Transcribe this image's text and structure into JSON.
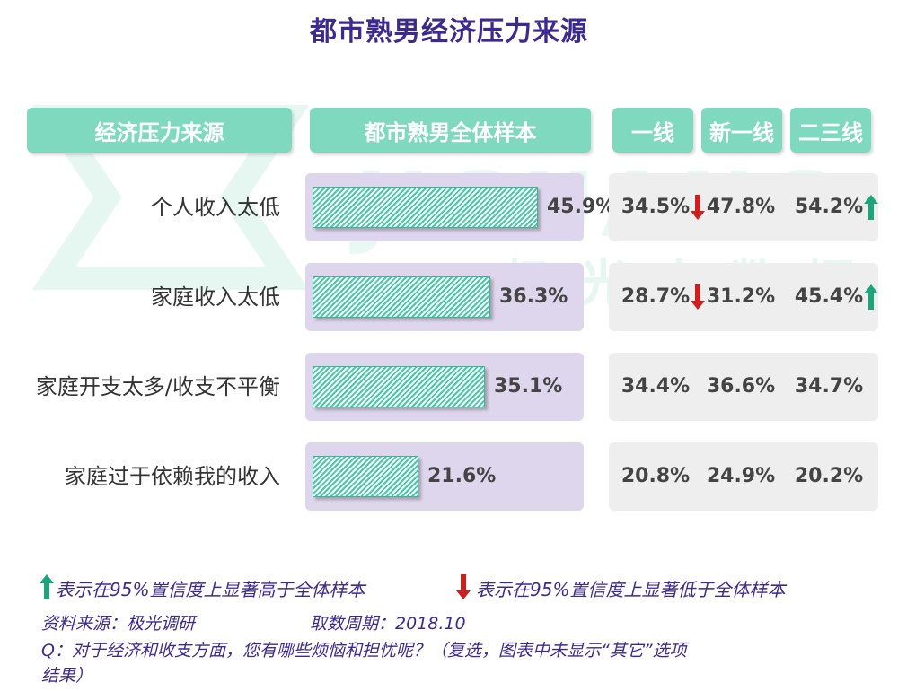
{
  "title": "都市熟男经济压力来源",
  "watermark": {
    "brand": "JIGUANG",
    "cn": "极光大数据"
  },
  "headers": {
    "source": "经济压力来源",
    "total": "都市熟男全体样本",
    "tier1": "一线",
    "tier_new1": "新一线",
    "tier23": "二三线"
  },
  "chart_data": {
    "type": "bar",
    "orientation": "horizontal",
    "title": "都市熟男经济压力来源",
    "categories": [
      "个人收入太低",
      "家庭收入太低",
      "家庭开支太多/收支不平衡",
      "家庭过于依赖我的收入"
    ],
    "series": [
      {
        "name": "都市熟男全体样本",
        "values": [
          45.9,
          36.3,
          35.1,
          21.6
        ],
        "labels": [
          "45.9%",
          "36.3%",
          "35.1%",
          "21.6%"
        ]
      }
    ],
    "xlim": [
      0,
      55
    ],
    "table": {
      "columns": [
        "一线",
        "新一线",
        "二三线"
      ],
      "rows": [
        {
          "values": [
            "34.5%",
            "47.8%",
            "54.2%"
          ],
          "signif": [
            "down",
            "",
            "up"
          ]
        },
        {
          "values": [
            "28.7%",
            "31.2%",
            "45.4%"
          ],
          "signif": [
            "down",
            "",
            "up"
          ]
        },
        {
          "values": [
            "34.4%",
            "36.6%",
            "34.7%"
          ],
          "signif": [
            "",
            "",
            ""
          ]
        },
        {
          "values": [
            "20.8%",
            "24.9%",
            "20.2%"
          ],
          "signif": [
            "",
            "",
            ""
          ]
        }
      ]
    },
    "colors": {
      "bar": "#47c9a5",
      "bar_bg": "#ddd6ec",
      "tier_bg": "#eeeeee",
      "up": "#1aa67a",
      "down": "#cc1f1f",
      "header": "#7fd9be",
      "title": "#3d2a8e"
    }
  },
  "legend": {
    "up": "表示在95%置信度上显著高于全体样本",
    "down": "表示在95%置信度上显著低于全体样本"
  },
  "footer": {
    "source": "资料来源：极光调研",
    "period": "取数周期：2018.10",
    "question_line1": "Q：对于经济和收支方面，您有哪些烦恼和担忧呢？（复选，图表中未显示“其它”选项",
    "question_line2": "结果）"
  }
}
